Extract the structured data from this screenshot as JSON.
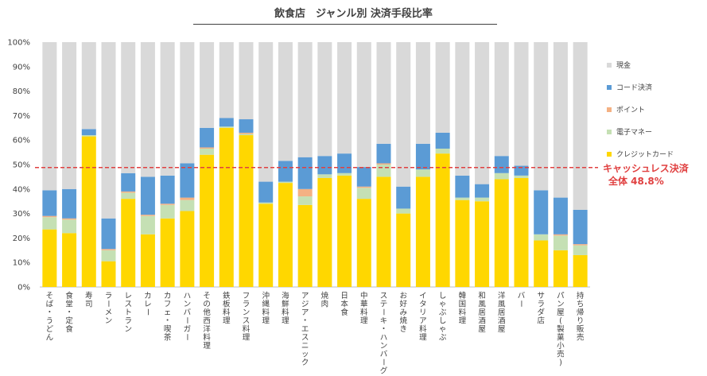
{
  "chart_data": {
    "type": "bar",
    "stacked": true,
    "title": "飲食店　ジャンル別 決済手段比率",
    "ylim": [
      0,
      100
    ],
    "y_ticks": [
      "0%",
      "10%",
      "20%",
      "30%",
      "40%",
      "50%",
      "60%",
      "70%",
      "80%",
      "90%",
      "100%"
    ],
    "categories": [
      "そば・うどん",
      "食堂・定食",
      "寿司",
      "ラーメン",
      "レストラン",
      "カレー",
      "カフェ・喫茶",
      "ハンバーガー",
      "その他西洋料理",
      "鉄板料理",
      "フランス料理",
      "沖縄料理",
      "海鮮料理",
      "アジア・エスニック",
      "焼肉",
      "日本食",
      "中華料理",
      "ステーキ・ハンバーグ",
      "お好み焼き",
      "イタリア料理",
      "しゃぶしゃぶ",
      "韓国料理",
      "和風居酒屋",
      "洋風居酒屋",
      "バー",
      "サラダ店",
      "パン屋(製菓小売)",
      "持ち帰り販売"
    ],
    "series": [
      {
        "name": "クレジットカード",
        "color": "#ffd700",
        "values": [
          23.5,
          22,
          61.5,
          10.5,
          36,
          21.5,
          28,
          31,
          54,
          65,
          62,
          34,
          42.5,
          33.5,
          44.5,
          45.5,
          36,
          45,
          30,
          45,
          54.5,
          35.5,
          35,
          44,
          44.5,
          19,
          15,
          13
        ]
      },
      {
        "name": "電子マネー",
        "color": "#c5e0b4",
        "values": [
          5,
          5.5,
          0.5,
          4.5,
          2.5,
          7.5,
          5.5,
          4.5,
          2.5,
          0.5,
          0.5,
          0.5,
          0.5,
          3.5,
          1.5,
          1,
          4.5,
          5,
          2,
          3,
          2,
          1,
          1.5,
          2.5,
          1,
          2.5,
          6,
          4
        ]
      },
      {
        "name": "ポイント",
        "color": "#f4b183",
        "values": [
          0.5,
          0.5,
          0,
          0.5,
          0.5,
          0.5,
          0.5,
          1,
          0.5,
          0,
          0.5,
          0,
          0,
          3,
          0,
          0,
          0.5,
          0.5,
          0,
          0,
          0,
          0,
          0,
          0,
          0,
          0,
          0.5,
          0.5
        ]
      },
      {
        "name": "コード決済",
        "color": "#5b9bd5",
        "values": [
          10.5,
          12,
          2.5,
          12.5,
          7.5,
          15.5,
          11.5,
          14,
          8,
          3.5,
          5.5,
          8.5,
          8.5,
          13,
          7.5,
          8,
          8,
          8,
          9,
          10.5,
          6.5,
          9,
          5.5,
          7,
          4,
          18,
          15,
          14
        ]
      },
      {
        "name": "現金",
        "color": "#d9d9d9",
        "values": [
          60.5,
          60,
          35.5,
          72,
          53.5,
          55,
          54.5,
          49.5,
          35,
          31,
          31.5,
          57,
          48.5,
          47,
          46.5,
          45.5,
          51,
          41.5,
          59,
          41.5,
          37,
          54.5,
          58,
          46.5,
          50.5,
          60.5,
          63.5,
          68.5
        ]
      }
    ],
    "legend_placement": "right",
    "legend_order": [
      "現金",
      "コード決済",
      "ポイント",
      "電子マネー",
      "クレジットカード"
    ],
    "reference_line": {
      "value": 48.8,
      "label": "キャッシュレス決済",
      "sublabel": "全体 48.8%",
      "color": "#e04040",
      "style": "dashed"
    },
    "grid": false
  }
}
